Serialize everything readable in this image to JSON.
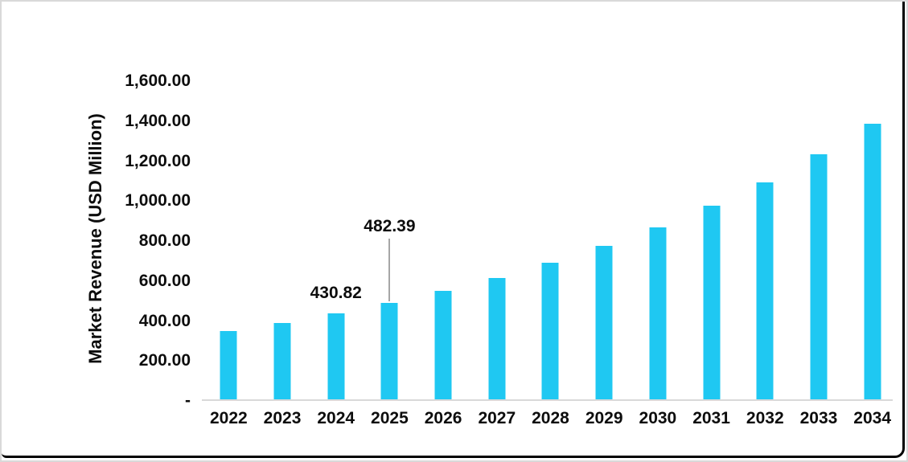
{
  "chart_data": {
    "type": "bar",
    "title": "",
    "ylabel": "Market Revenue (USD Million)",
    "xlabel": "",
    "categories": [
      "2022",
      "2023",
      "2024",
      "2025",
      "2026",
      "2027",
      "2028",
      "2029",
      "2030",
      "2031",
      "2032",
      "2033",
      "2034"
    ],
    "values": [
      340,
      382,
      430.82,
      482.39,
      541,
      607,
      683,
      767,
      860,
      968,
      1086,
      1226,
      1380
    ],
    "bar_labels": [
      "",
      "",
      "430.82",
      "482.39",
      "",
      "",
      "",
      "",
      "",
      "",
      "",
      "",
      ""
    ],
    "annotations": [
      {
        "category": "2024",
        "text": "430.82",
        "leader_line": false
      },
      {
        "category": "2025",
        "text": "482.39",
        "leader_line": true
      }
    ],
    "ylim": [
      0,
      1600
    ],
    "ytick_interval": 200,
    "ytick_labels_top_to_bottom": [
      "1,600.00",
      "1,400.00",
      "1,200.00",
      "1,000.00",
      "800.00",
      "600.00",
      "400.00",
      "200.00",
      "-"
    ],
    "grid": false,
    "legend": "none",
    "colors": {
      "bar": "#1fc8f2",
      "axis_line": "#d9d9d9",
      "leader_line": "#a6a6a6",
      "text": "#0d0d0d",
      "frame": "#000000",
      "outer_edge": "#d9d9d9"
    }
  }
}
